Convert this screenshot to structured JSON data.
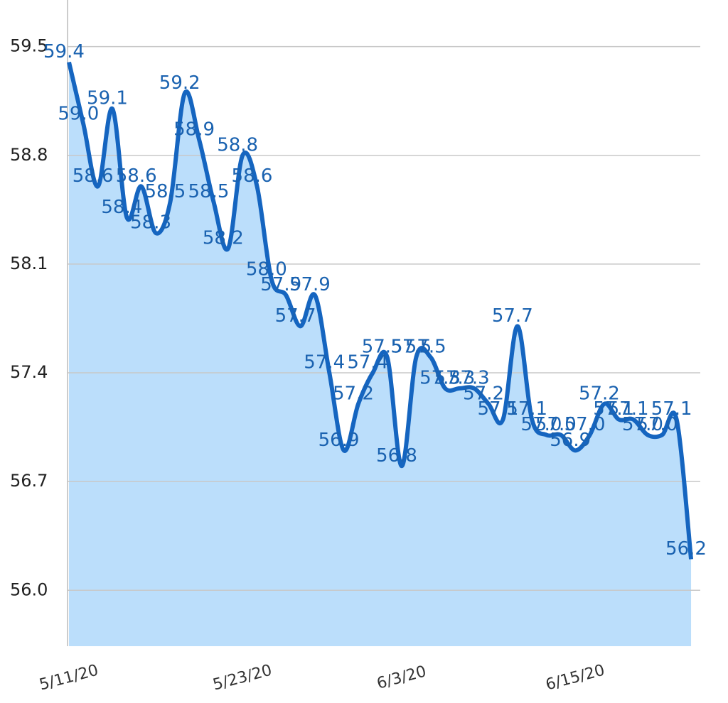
{
  "chart_data": {
    "type": "area",
    "categories": [
      "5/11/20",
      null,
      null,
      null,
      null,
      null,
      null,
      null,
      null,
      null,
      null,
      null,
      "5/23/20",
      null,
      null,
      null,
      null,
      null,
      null,
      null,
      null,
      null,
      null,
      "6/3/20",
      null,
      null,
      null,
      null,
      null,
      null,
      null,
      null,
      null,
      null,
      null,
      "6/15/20",
      null,
      null,
      null,
      null,
      null,
      null,
      null,
      null
    ],
    "values": [
      59.4,
      59.0,
      58.6,
      59.1,
      58.4,
      58.6,
      58.3,
      58.5,
      59.2,
      58.9,
      58.5,
      58.2,
      58.8,
      58.6,
      58.0,
      57.9,
      57.7,
      57.9,
      57.4,
      56.9,
      57.2,
      57.4,
      57.5,
      56.8,
      57.5,
      57.5,
      57.3,
      57.3,
      57.3,
      57.2,
      57.1,
      57.7,
      57.1,
      57.0,
      57.0,
      56.9,
      57.0,
      57.2,
      57.1,
      57.1,
      57.0,
      57.0,
      57.1,
      56.2
    ],
    "value_labels": [
      "59.4",
      "59.0",
      "58.6",
      "59.1",
      "58.4",
      "58.6",
      "58.3",
      "58.5",
      "59.2",
      "58.9",
      "58.5",
      "58.2",
      "58.8",
      "58.6",
      "58.0",
      "57.9",
      "57.7",
      "57.9",
      "57.4",
      "56.9",
      "57.2",
      "57.4",
      "57.5",
      "56.8",
      "57.5",
      "57.5",
      "57.3",
      "57.3",
      "57.3",
      "57.2",
      "57.1",
      "57.7",
      "57.1",
      "57.0",
      "57.0",
      "56.9",
      "57.0",
      "57.2",
      "57.1",
      "57.1",
      "57.0",
      "57.0",
      "57.1",
      "56.2"
    ],
    "color": "#1565c0",
    "fill": "#bbdefb",
    "ylim": [
      55.64,
      59.8
    ],
    "yticks": [
      {
        "value": 56,
        "label": "56.0"
      },
      56.7,
      57.4,
      58.1,
      58.8,
      59.5
    ],
    "grid": true
  }
}
